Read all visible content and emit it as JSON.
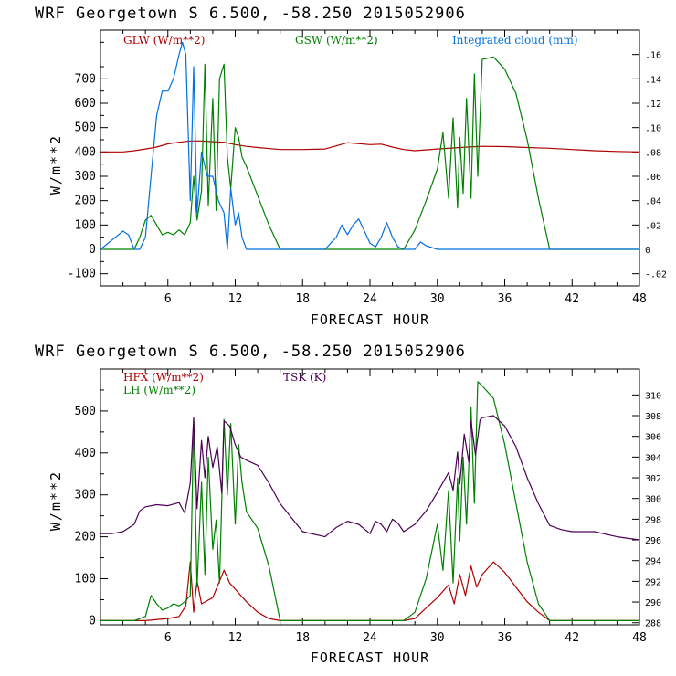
{
  "chart_data": [
    {
      "type": "line",
      "title": "WRF   Georgetown S   6.500, -58.250  2015052906",
      "xlabel": "FORECAST HOUR",
      "ylabel": "W/m**2",
      "xlim": [
        0,
        48
      ],
      "ylim": [
        -150,
        900
      ],
      "x_ticks": [
        "6",
        "12",
        "18",
        "24",
        "30",
        "36",
        "42",
        "48"
      ],
      "y_ticks": [
        "-100",
        "0",
        "100",
        "200",
        "300",
        "400",
        "500",
        "600",
        "700"
      ],
      "y2_ticks": [
        "-.02",
        "0",
        ".02",
        ".04",
        ".06",
        ".08",
        ".10",
        ".12",
        ".14",
        ".16"
      ],
      "y2lim": [
        -0.03,
        0.18
      ],
      "legend": [
        "GLW (W/m**2)",
        "GSW (W/m**2)",
        "Integrated cloud (mm)"
      ],
      "colors": {
        "glw": "#b00000",
        "gsw": "#008000",
        "cloud": "#0070e0"
      },
      "series": [
        {
          "name": "GLW (W/m**2)",
          "axis": "left",
          "x": [
            0,
            2,
            3,
            4,
            5,
            6,
            7,
            8,
            9,
            10,
            11,
            12,
            13,
            14,
            16,
            18,
            20,
            21,
            22,
            24,
            25,
            26,
            27,
            28,
            30,
            32,
            34,
            36,
            38,
            40,
            42,
            44,
            46,
            48
          ],
          "values": [
            400,
            400,
            405,
            412,
            420,
            433,
            440,
            445,
            445,
            442,
            440,
            430,
            423,
            418,
            410,
            410,
            412,
            425,
            438,
            430,
            432,
            420,
            410,
            405,
            412,
            418,
            423,
            422,
            418,
            415,
            410,
            405,
            402,
            400
          ]
        },
        {
          "name": "GSW (W/m**2)",
          "axis": "left",
          "x": [
            0,
            3,
            3.5,
            4,
            4.5,
            5,
            5.5,
            6,
            6.5,
            7,
            7.5,
            8,
            8.3,
            8.6,
            9,
            9.3,
            9.6,
            10,
            10.3,
            10.6,
            11,
            11.3,
            11.6,
            12,
            12.3,
            12.6,
            13,
            14,
            15,
            16,
            27,
            28,
            29,
            30,
            30.5,
            31,
            31.4,
            31.8,
            32,
            32.3,
            32.6,
            33,
            33.3,
            33.6,
            34,
            35,
            36,
            37,
            38,
            39,
            40,
            48
          ],
          "values": [
            0,
            0,
            50,
            120,
            140,
            100,
            60,
            70,
            60,
            80,
            60,
            110,
            300,
            120,
            240,
            760,
            180,
            620,
            160,
            700,
            760,
            380,
            250,
            500,
            460,
            380,
            340,
            220,
            100,
            0,
            0,
            80,
            200,
            330,
            480,
            210,
            540,
            170,
            460,
            230,
            620,
            210,
            720,
            300,
            780,
            790,
            740,
            640,
            450,
            210,
            0,
            0
          ]
        },
        {
          "name": "Integrated cloud (mm)",
          "axis": "right",
          "x": [
            0,
            2,
            2.5,
            3,
            3.5,
            4,
            4.5,
            5,
            5.5,
            6,
            6.5,
            7,
            7.3,
            7.6,
            8,
            8.3,
            8.6,
            9,
            9.5,
            10,
            10.5,
            11,
            11.3,
            11.6,
            12,
            12.3,
            12.6,
            13,
            13.5,
            14,
            20,
            21,
            21.5,
            22,
            22.5,
            23,
            23.5,
            24,
            24.5,
            25,
            25.5,
            26,
            26.5,
            27,
            28,
            28.5,
            29,
            30,
            31,
            48
          ],
          "values": [
            0,
            0.015,
            0.012,
            0.0,
            0.0,
            0.01,
            0.06,
            0.11,
            0.13,
            0.13,
            0.14,
            0.16,
            0.17,
            0.16,
            0.04,
            0.15,
            0.03,
            0.08,
            0.06,
            0.06,
            0.04,
            0.03,
            0.0,
            0.05,
            0.02,
            0.03,
            0.01,
            0.0,
            0.0,
            0.0,
            0.0,
            0.01,
            0.02,
            0.012,
            0.02,
            0.025,
            0.015,
            0.005,
            0.002,
            0.01,
            0.022,
            0.01,
            0.002,
            0.0,
            0.0,
            0.006,
            0.003,
            0.0,
            0.0,
            0.0
          ]
        }
      ]
    },
    {
      "type": "line",
      "title": "WRF   Georgetown S   6.500, -58.250  2015052906",
      "xlabel": "FORECAST HOUR",
      "ylabel": "W/m**2",
      "xlim": [
        0,
        48
      ],
      "ylim": [
        -10,
        600
      ],
      "x_ticks": [
        "6",
        "12",
        "18",
        "24",
        "30",
        "36",
        "42",
        "48"
      ],
      "y_ticks": [
        "0",
        "100",
        "200",
        "300",
        "400",
        "500"
      ],
      "y2_ticks": [
        "288",
        "290",
        "292",
        "294",
        "296",
        "298",
        "300",
        "302",
        "304",
        "306",
        "308",
        "310"
      ],
      "y2lim": [
        287.8,
        312.5
      ],
      "legend": [
        "HFX (W/m**2)",
        "LH  (W/m**2)",
        "TSK (K)"
      ],
      "colors": {
        "hfx": "#b00000",
        "lh": "#008000",
        "tsk": "#4b0055"
      },
      "series": [
        {
          "name": "HFX (W/m**2)",
          "axis": "left",
          "x": [
            0,
            4,
            6,
            7,
            7.6,
            8,
            8.3,
            8.6,
            9,
            10,
            11,
            11.5,
            12,
            13,
            14,
            15,
            16,
            27,
            28,
            29,
            30,
            31,
            31.5,
            32,
            32.5,
            33,
            33.5,
            34,
            35,
            36,
            37,
            38,
            39,
            40,
            48
          ],
          "values": [
            0,
            0,
            5,
            10,
            35,
            140,
            20,
            95,
            40,
            55,
            120,
            90,
            75,
            45,
            20,
            5,
            0,
            0,
            5,
            30,
            55,
            85,
            40,
            110,
            60,
            130,
            80,
            110,
            140,
            115,
            80,
            45,
            20,
            0,
            0
          ]
        },
        {
          "name": "LH  (W/m**2)",
          "axis": "left",
          "x": [
            0,
            3,
            4,
            4.5,
            5,
            5.5,
            6,
            6.5,
            7,
            7.5,
            8,
            8.3,
            8.6,
            9,
            9.3,
            9.6,
            10,
            10.3,
            10.6,
            11,
            11.3,
            11.6,
            12,
            12.3,
            12.6,
            13,
            14,
            15,
            16,
            27,
            28,
            29,
            30,
            30.5,
            31,
            31.4,
            31.8,
            32,
            32.3,
            32.6,
            33,
            33.3,
            33.6,
            34,
            35,
            36,
            37,
            38,
            39,
            40,
            48
          ],
          "values": [
            0,
            0,
            10,
            60,
            40,
            25,
            30,
            40,
            35,
            45,
            60,
            480,
            80,
            330,
            110,
            390,
            170,
            240,
            90,
            480,
            300,
            470,
            230,
            420,
            330,
            260,
            220,
            130,
            0,
            0,
            20,
            100,
            230,
            120,
            310,
            90,
            340,
            190,
            390,
            230,
            510,
            280,
            570,
            560,
            530,
            420,
            280,
            140,
            40,
            0,
            0
          ]
        },
        {
          "name": "TSK (K)",
          "axis": "right",
          "x": [
            0,
            1,
            2,
            3,
            3.5,
            4,
            5,
            6,
            7,
            7.5,
            8,
            8.3,
            8.6,
            9,
            9.3,
            9.6,
            10,
            10.4,
            10.8,
            11,
            11.5,
            12,
            12.5,
            13,
            14,
            15,
            16,
            18,
            20,
            21,
            22,
            23,
            24,
            24.5,
            25,
            25.5,
            26,
            26.5,
            27,
            28,
            29,
            30,
            31,
            31.4,
            31.8,
            32,
            32.4,
            32.8,
            33,
            33.4,
            33.8,
            34,
            35,
            36,
            37,
            38,
            39,
            40,
            41,
            42,
            44,
            46,
            48
          ],
          "values": [
            296.6,
            296.6,
            296.8,
            297.5,
            298.8,
            299.2,
            299.4,
            299.3,
            299.6,
            298.6,
            301.5,
            307.8,
            299.0,
            305.6,
            302.0,
            306.0,
            303.0,
            305.0,
            300.5,
            307.5,
            307.0,
            305.2,
            304.0,
            303.7,
            303.2,
            301.5,
            299.5,
            296.8,
            296.3,
            297.2,
            297.8,
            297.5,
            296.6,
            297.8,
            297.5,
            296.8,
            298.0,
            297.6,
            296.8,
            297.5,
            298.8,
            300.6,
            302.5,
            300.8,
            304.5,
            301.4,
            306.2,
            303.5,
            307.5,
            304.2,
            307.6,
            307.8,
            308.0,
            307.0,
            305.0,
            302.0,
            299.5,
            297.4,
            297.0,
            296.8,
            296.8,
            296.3,
            296.0
          ]
        }
      ]
    }
  ]
}
